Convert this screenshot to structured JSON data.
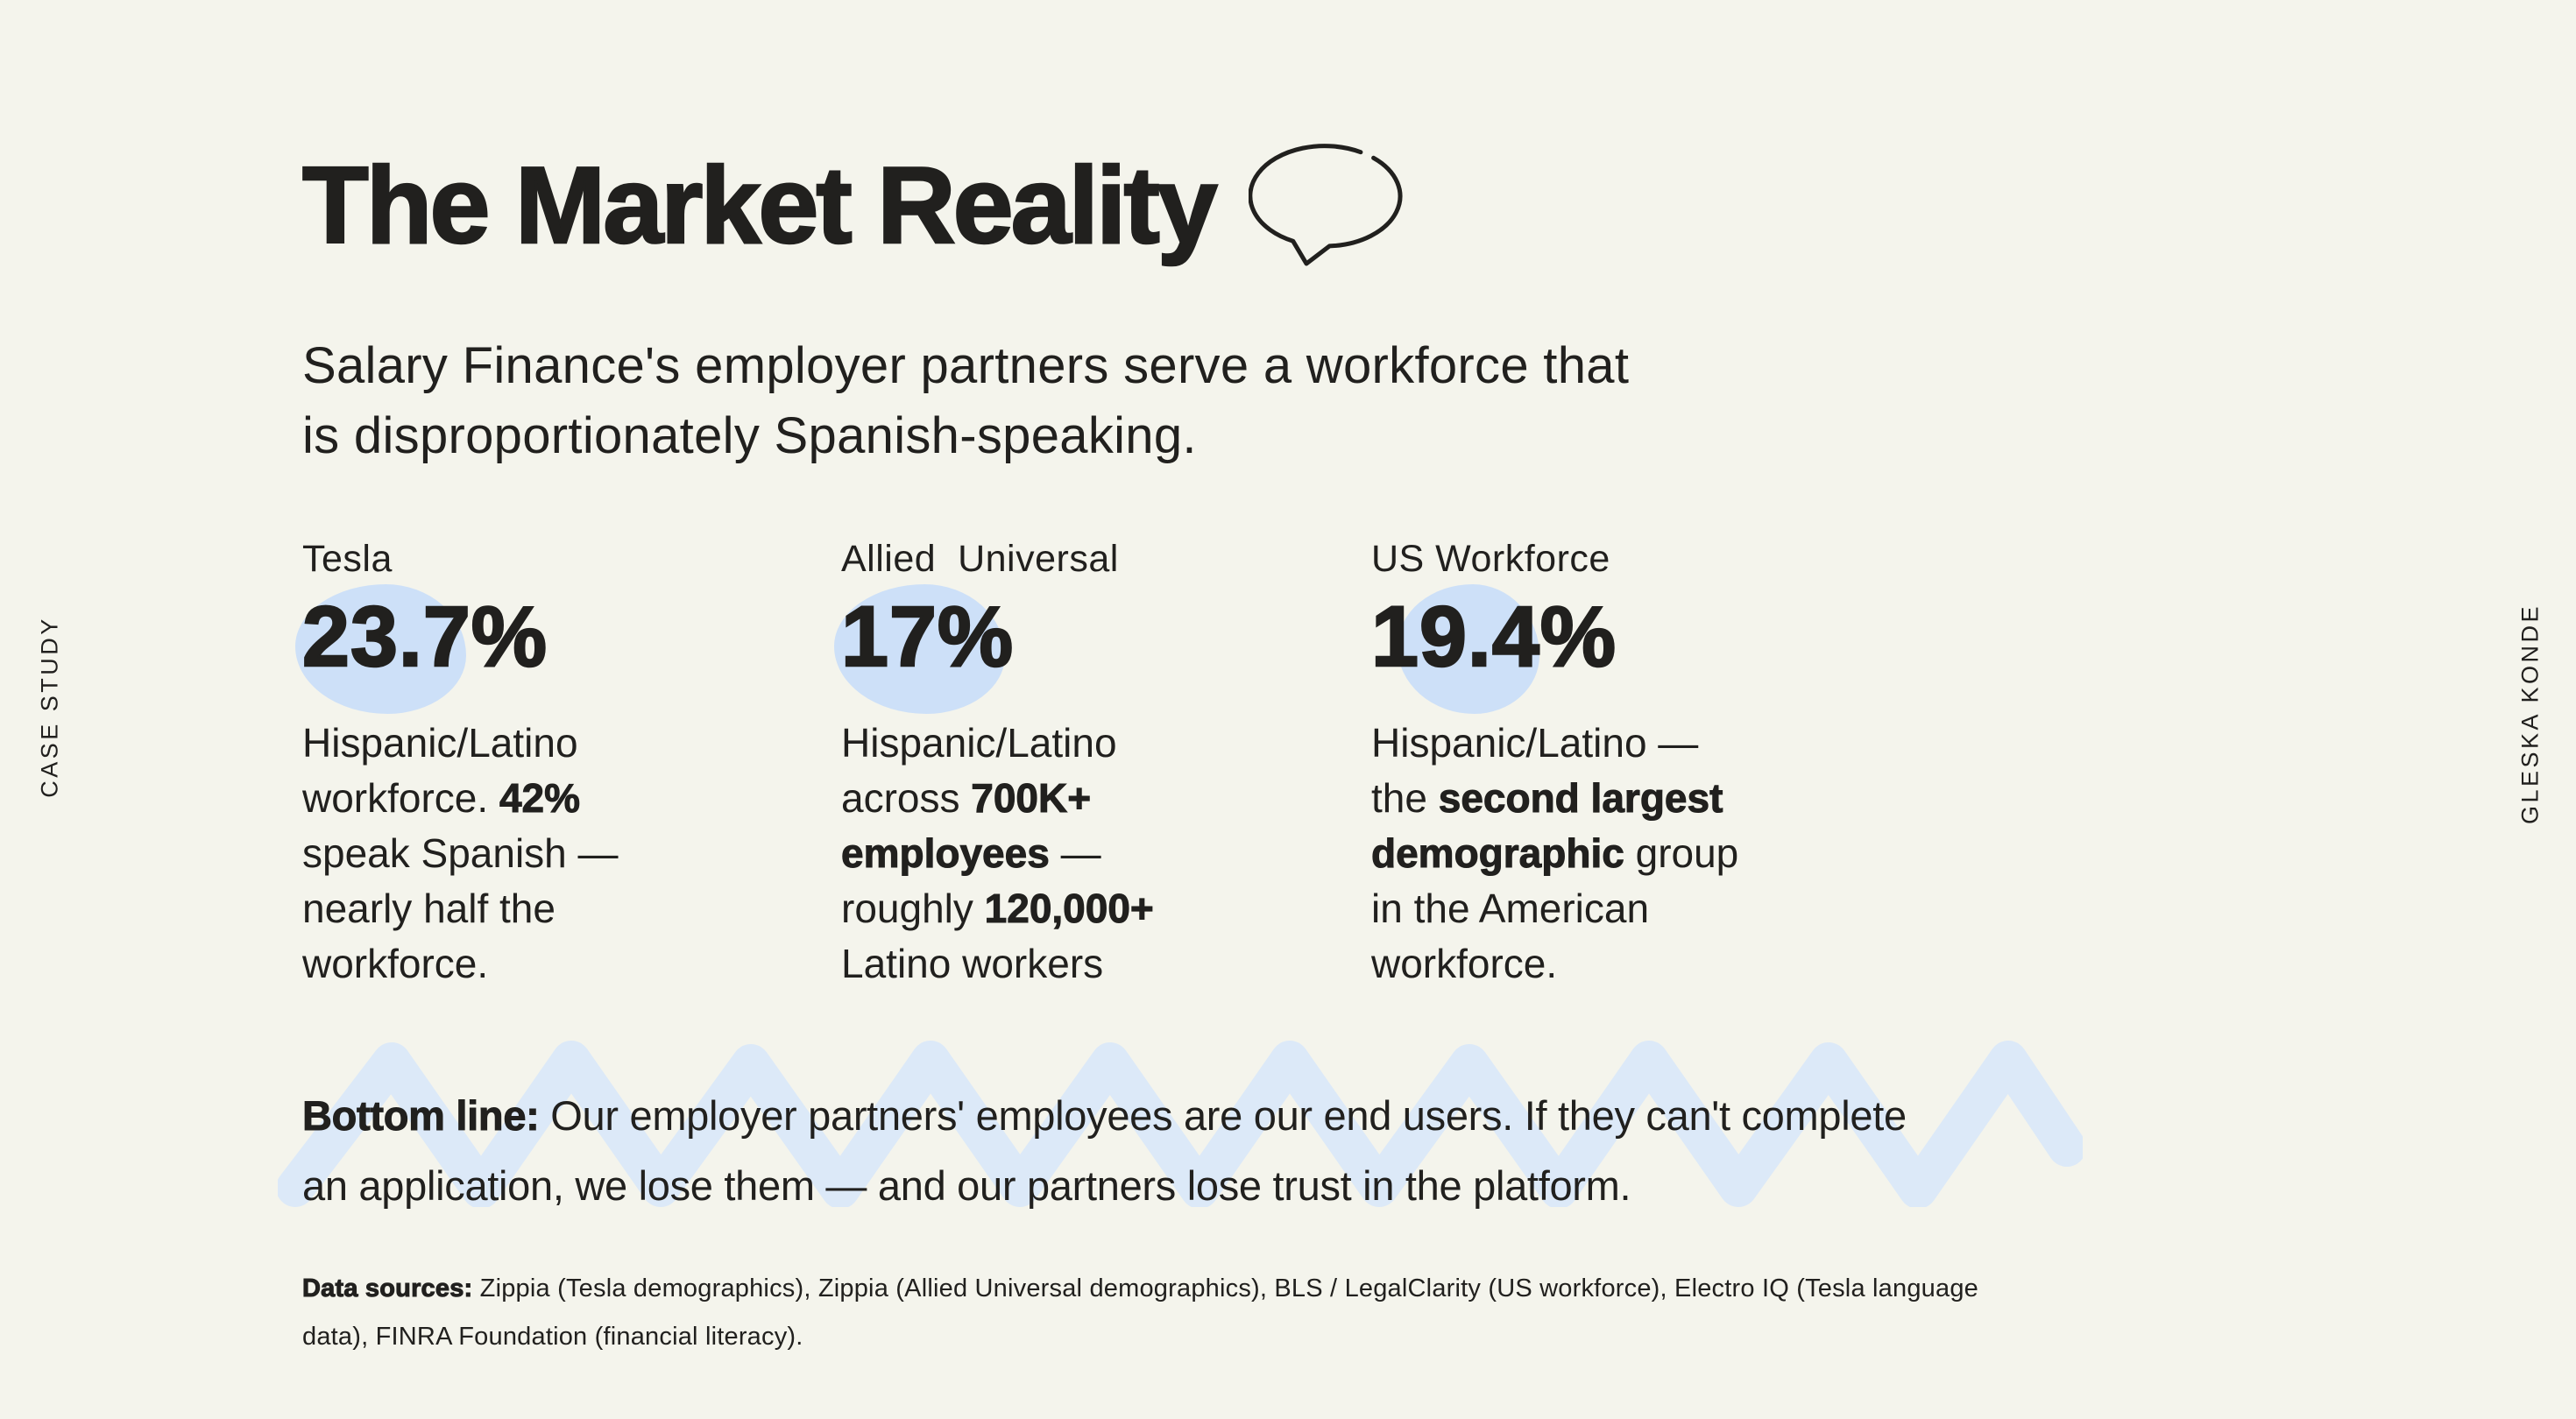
{
  "page": {
    "background": "#f4f4ec",
    "ink": "#21201e",
    "blob_color": "#cde0f8",
    "zigzag_color": "#dce9f8"
  },
  "side_labels": {
    "left": "CASE STUDY",
    "right": "GLESKA KONDE"
  },
  "header": {
    "title": "The Market Reality"
  },
  "intro": {
    "lines": [
      [
        {
          "t": "Salary Finance's employer partners serve a workforce that"
        }
      ],
      [
        {
          "t": "is disproportionately Spanish-speaking."
        }
      ]
    ]
  },
  "stats": [
    {
      "label": "Tesla",
      "value": "23.7%",
      "description": [
        [
          {
            "t": "Hispanic/Latino"
          }
        ],
        [
          {
            "t": "workforce. "
          },
          {
            "t": "42%",
            "b": true
          }
        ],
        [
          {
            "t": "speak Spanish —"
          }
        ],
        [
          {
            "t": "nearly half the"
          }
        ],
        [
          {
            "t": "workforce."
          }
        ]
      ]
    },
    {
      "label": "Allied  Universal",
      "value": "17%",
      "description": [
        [
          {
            "t": "Hispanic/Latino"
          }
        ],
        [
          {
            "t": "across "
          },
          {
            "t": "700K+",
            "b": true
          }
        ],
        [
          {
            "t": "employees",
            "b": true
          },
          {
            "t": " —"
          }
        ],
        [
          {
            "t": "roughly "
          },
          {
            "t": "120,000+",
            "b": true
          }
        ],
        [
          {
            "t": "Latino workers"
          }
        ]
      ]
    },
    {
      "label": "US Workforce",
      "value": "19.4%",
      "description": [
        [
          {
            "t": "Hispanic/Latino —"
          }
        ],
        [
          {
            "t": "the "
          },
          {
            "t": "second largest",
            "b": true
          }
        ],
        [
          {
            "t": "demographic",
            "b": true
          },
          {
            "t": " group"
          }
        ],
        [
          {
            "t": "in the American"
          }
        ],
        [
          {
            "t": "workforce."
          }
        ]
      ]
    }
  ],
  "bottom_line": {
    "lines": [
      [
        {
          "t": "Bottom line:",
          "b": true
        },
        {
          "t": " Our employer partners' employees are our end users. If they can't complete"
        }
      ],
      [
        {
          "t": "an application, we lose them — and our partners lose trust in the platform."
        }
      ]
    ]
  },
  "data_sources": {
    "lines": [
      [
        {
          "t": "Data sources:",
          "b": true
        },
        {
          "t": " Zippia (Tesla demographics), Zippia (Allied Universal demographics), BLS / LegalClarity (US workforce), Electro IQ (Tesla language"
        }
      ],
      [
        {
          "t": "data), FINRA Foundation (financial literacy)."
        }
      ]
    ]
  }
}
